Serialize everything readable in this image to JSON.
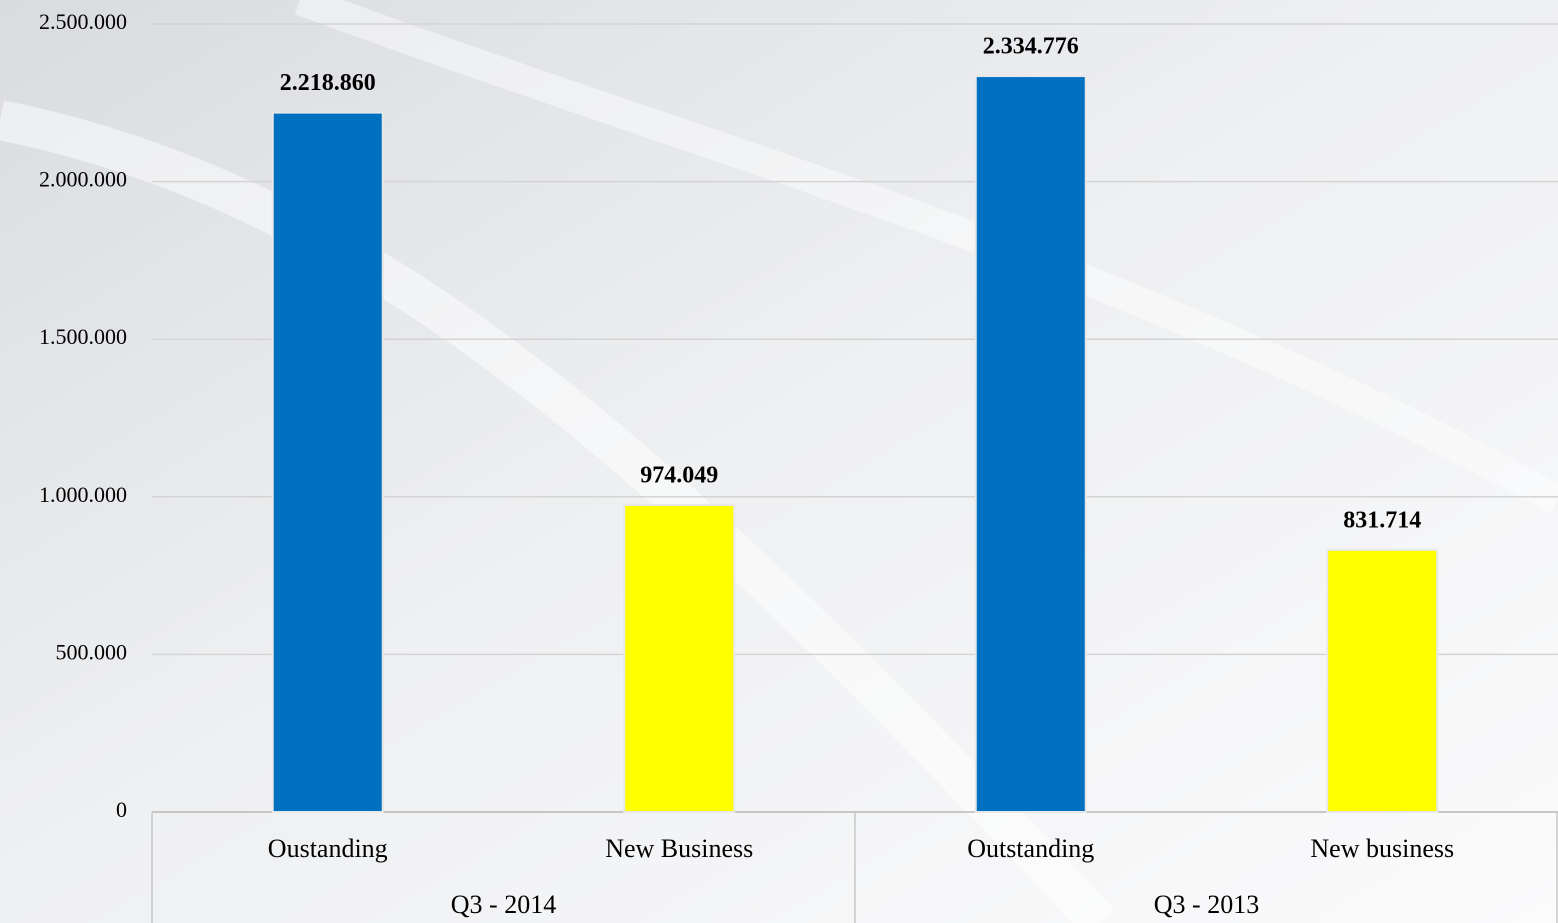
{
  "chart_data": {
    "type": "bar",
    "categories": [
      "Oustanding",
      "New Business",
      "Outstanding",
      "New business"
    ],
    "groups": [
      "Q3 - 2014",
      "Q3 - 2013"
    ],
    "values": [
      2218860,
      974049,
      2334776,
      831714
    ],
    "value_labels": [
      "2.218.860",
      "974.049",
      "2.334.776",
      "831.714"
    ],
    "colors": [
      "#0070c0",
      "#ffff00",
      "#0070c0",
      "#ffff00"
    ],
    "ylim": [
      0,
      2500000
    ],
    "yticks": [
      0,
      {
        "value": 500000,
        "label": "500.000"
      },
      {
        "value": 1000000,
        "label": "1.000.000"
      },
      {
        "value": 1500000,
        "label": "1.500.000"
      },
      {
        "value": 2000000,
        "label": "2.000.000"
      },
      {
        "value": 2500000,
        "label": "2.500.000"
      }
    ],
    "grid": true
  }
}
